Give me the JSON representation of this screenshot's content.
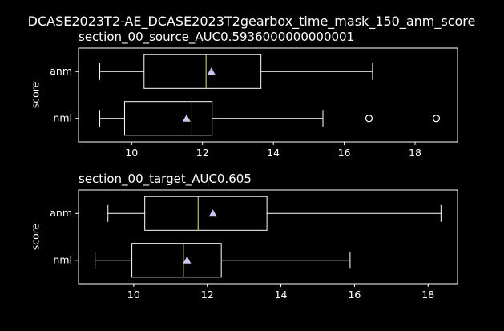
{
  "chart_data": {
    "type": "boxplot",
    "suptitle": "DCASE2023T2-AE_DCASE2023T2gearbox_time_mask_150_anm_score",
    "colors": {
      "background": "#000000",
      "frame": "#ffffff",
      "box": "#ffffff",
      "median": "#e5e57a",
      "mean_marker": "#c7c7f0",
      "flier": "#ffffff"
    },
    "panels": [
      {
        "title": "section_00_source_AUC0.5936000000000001",
        "ylabel": "score",
        "xlim": [
          8.5,
          19.2
        ],
        "xticks": [
          10,
          12,
          14,
          16,
          18
        ],
        "categories": [
          "anm",
          "nml"
        ],
        "boxes": [
          {
            "label": "anm",
            "whislo": 9.1,
            "q1": 10.35,
            "med": 12.1,
            "q3": 13.65,
            "whishi": 16.8,
            "mean": 12.25,
            "fliers": []
          },
          {
            "label": "nml",
            "whislo": 9.1,
            "q1": 9.8,
            "med": 11.7,
            "q3": 12.27,
            "whishi": 15.4,
            "mean": 11.55,
            "fliers": [
              16.7,
              18.6
            ]
          }
        ]
      },
      {
        "title": "section_00_target_AUC0.605",
        "ylabel": "score",
        "xlim": [
          8.5,
          18.8
        ],
        "xticks": [
          10,
          12,
          14,
          16,
          18
        ],
        "categories": [
          "anm",
          "nml"
        ],
        "boxes": [
          {
            "label": "anm",
            "whislo": 9.3,
            "q1": 10.3,
            "med": 11.75,
            "q3": 13.62,
            "whishi": 18.35,
            "mean": 12.15,
            "fliers": []
          },
          {
            "label": "nml",
            "whislo": 8.95,
            "q1": 9.95,
            "med": 11.35,
            "q3": 12.38,
            "whishi": 15.88,
            "mean": 11.45,
            "fliers": []
          }
        ]
      }
    ]
  }
}
